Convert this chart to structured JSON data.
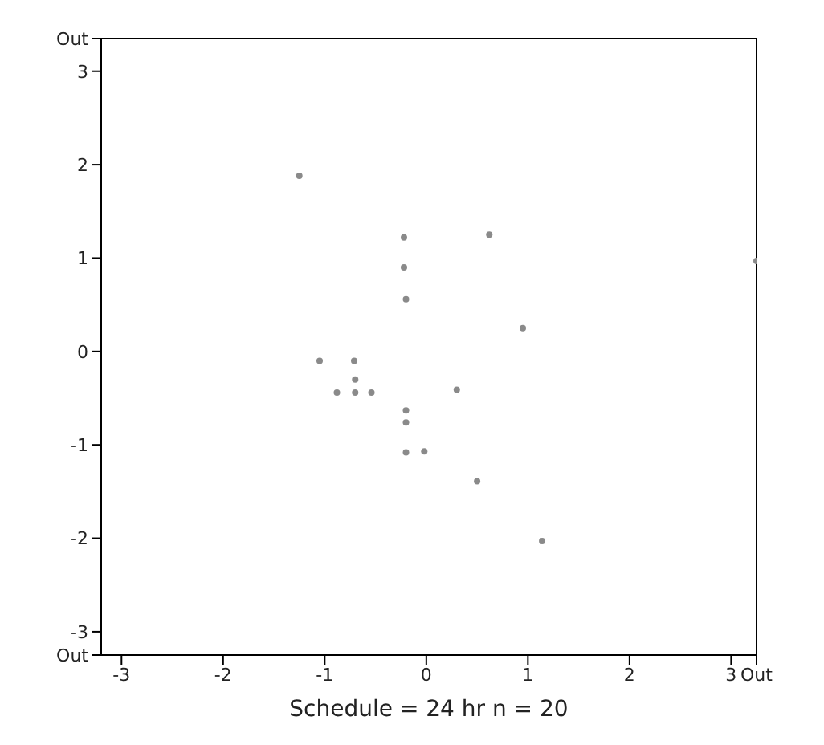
{
  "chart_data": {
    "type": "scatter",
    "xlabel": "Schedule = 24 hr    n = 20",
    "x": [
      -1.25,
      -0.22,
      0.62,
      -0.22,
      -0.2,
      0.95,
      -1.05,
      -0.71,
      -0.7,
      -0.88,
      -0.7,
      -0.54,
      0.3,
      -0.2,
      -0.2,
      -0.2,
      -0.02,
      0.5,
      1.14,
      3.25
    ],
    "series": [
      {
        "color": "#8a8a8a",
        "values": [
          1.88,
          1.22,
          1.25,
          0.9,
          0.56,
          0.25,
          -0.1,
          -0.1,
          -0.3,
          -0.44,
          -0.44,
          -0.44,
          -0.41,
          -0.63,
          -0.76,
          -1.08,
          -1.07,
          -1.39,
          -2.03,
          0.97
        ]
      }
    ],
    "xlim": [
      -3.2,
      3.25
    ],
    "xticks": [
      -3,
      -2,
      -1,
      0,
      1,
      2,
      3,
      {
        "value": 3.25,
        "label": "Out"
      }
    ],
    "ylim": [
      -3.25,
      3.35
    ],
    "yticks": [
      {
        "value": -3.25,
        "label": "Out"
      },
      -3,
      -2,
      -1,
      0,
      1,
      2,
      3,
      {
        "value": 3.35,
        "label": "Out"
      }
    ],
    "marker": "circle",
    "legend": false
  }
}
